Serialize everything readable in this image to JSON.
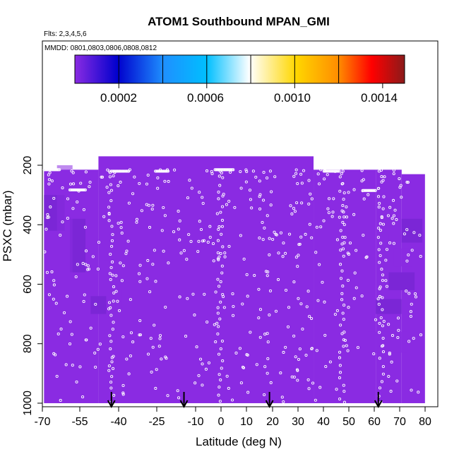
{
  "chart_data": {
    "type": "heatmap",
    "title": "ATOM1 Southbound MPAN_GMI",
    "annotations": [
      "Flts: 2,3,4,5,6",
      "MMDD: 0801,0803,0806,0808,0812"
    ],
    "xlabel": "Latitude (deg N)",
    "ylabel": "PSXC (mbar)",
    "xlim": [
      -70,
      80
    ],
    "ylim": [
      1000,
      100
    ],
    "x_tick_labels": [
      "-70",
      "-55",
      "-40",
      "-25",
      "-10",
      "0",
      "10",
      "20",
      "30",
      "40",
      "50",
      "60",
      "70",
      "80"
    ],
    "y_tick_labels": [
      "200",
      "400",
      "600",
      "800",
      "1000"
    ],
    "colorbar": {
      "range": [
        0,
        0.0015
      ],
      "bin_edges": [
        0,
        0.0002,
        0.0004,
        0.0006,
        0.0008,
        0.001,
        0.0012,
        0.0015
      ],
      "tick_labels": [
        "0.0002",
        "0.0006",
        "0.0010",
        "0.0014"
      ],
      "colors": [
        "#8a2be2",
        "#0000cd",
        "#00bfff",
        "#ffffff",
        "#ffd700",
        "#ff8c00",
        "#ff0000",
        "#8b1a1a"
      ]
    },
    "background_value": 2e-05,
    "regions": [
      {
        "lon": [
          -63,
          -57
        ],
        "p": [
          200,
          1000
        ],
        "v": 2e-05
      },
      {
        "lon": [
          -46,
          -44
        ],
        "p": [
          320,
          380
        ],
        "v": 0.00012
      },
      {
        "lon": [
          -44,
          -40
        ],
        "p": [
          370,
          440
        ],
        "v": 0.00016
      },
      {
        "lon": [
          -45,
          -43
        ],
        "p": [
          430,
          520
        ],
        "v": 8e-05
      },
      {
        "lon": [
          -42,
          -38
        ],
        "p": [
          620,
          680
        ],
        "v": 0.00012
      },
      {
        "lon": [
          -42,
          -40
        ],
        "p": [
          720,
          790
        ],
        "v": 8e-05
      },
      {
        "lon": [
          18,
          25
        ],
        "p": [
          960,
          1000
        ],
        "v": 8e-05
      },
      {
        "lon": [
          57,
          63
        ],
        "p": [
          760,
          830
        ],
        "v": 0.00012
      },
      {
        "lon": [
          63,
          72
        ],
        "p": [
          760,
          830
        ],
        "v": 0.00014
      },
      {
        "lon": [
          67,
          74
        ],
        "p": [
          480,
          540
        ],
        "v": 0.00014
      },
      {
        "lon": [
          65,
          70
        ],
        "p": [
          430,
          480
        ],
        "v": 8e-05
      }
    ],
    "arrows_lat": [
      -42,
      -14,
      19,
      61
    ],
    "marker_color": "#ffffff"
  }
}
